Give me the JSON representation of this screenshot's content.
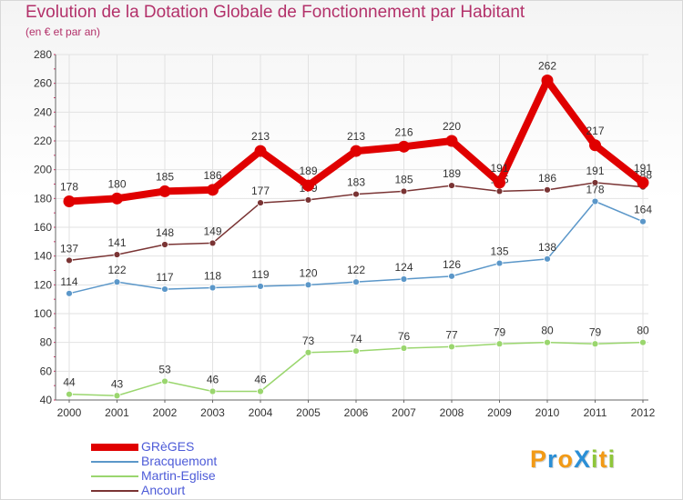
{
  "title": "Evolution de la Dotation Globale de Fonctionnement par Habitant",
  "subtitle": "(en € et par an)",
  "colors": {
    "title": "#b3316a",
    "grid": "#e2e2e2",
    "axis": "#666666",
    "tick_label": "#333333",
    "data_label": "#333333",
    "legend_text": "#4d5bd8"
  },
  "logo": {
    "text": "ProXiti",
    "letters": [
      {
        "char": "P",
        "color": "#f29a16"
      },
      {
        "char": "r",
        "color": "#2b8fd6"
      },
      {
        "char": "o",
        "color": "#f29a16"
      },
      {
        "char": "X",
        "color": "#2b8fd6"
      },
      {
        "char": "i",
        "color": "#8fc63b"
      },
      {
        "char": "t",
        "color": "#f29a16"
      },
      {
        "char": "i",
        "color": "#8fc63b"
      }
    ]
  },
  "chart_data": {
    "type": "line",
    "title": "Evolution de la Dotation Globale de Fonctionnement par Habitant",
    "subtitle": "(en € et par an)",
    "xlabel": "",
    "ylabel": "",
    "ylim": [
      40,
      280
    ],
    "yticks": [
      40,
      60,
      80,
      100,
      120,
      140,
      160,
      180,
      200,
      220,
      240,
      260,
      280
    ],
    "grid": true,
    "legend_position": "bottom-left",
    "categories": [
      "2000",
      "2001",
      "2002",
      "2003",
      "2004",
      "2005",
      "2006",
      "2007",
      "2008",
      "2009",
      "2010",
      "2011",
      "2012"
    ],
    "series": [
      {
        "name": "GRèGES",
        "color": "#e00000",
        "emphasis": true,
        "values": [
          178,
          180,
          185,
          186,
          213,
          189,
          213,
          216,
          220,
          191,
          262,
          217,
          191
        ]
      },
      {
        "name": "Bracquemont",
        "color": "#5b97c9",
        "emphasis": false,
        "values": [
          114,
          122,
          117,
          118,
          119,
          120,
          122,
          124,
          126,
          135,
          138,
          178,
          164
        ]
      },
      {
        "name": "Martin-Eglise",
        "color": "#9ad66e",
        "emphasis": false,
        "values": [
          44,
          43,
          53,
          46,
          46,
          73,
          74,
          76,
          77,
          79,
          80,
          79,
          80
        ]
      },
      {
        "name": "Ancourt",
        "color": "#7a3434",
        "emphasis": false,
        "values": [
          137,
          141,
          148,
          149,
          177,
          179,
          183,
          185,
          189,
          185,
          186,
          191,
          188
        ]
      }
    ]
  }
}
